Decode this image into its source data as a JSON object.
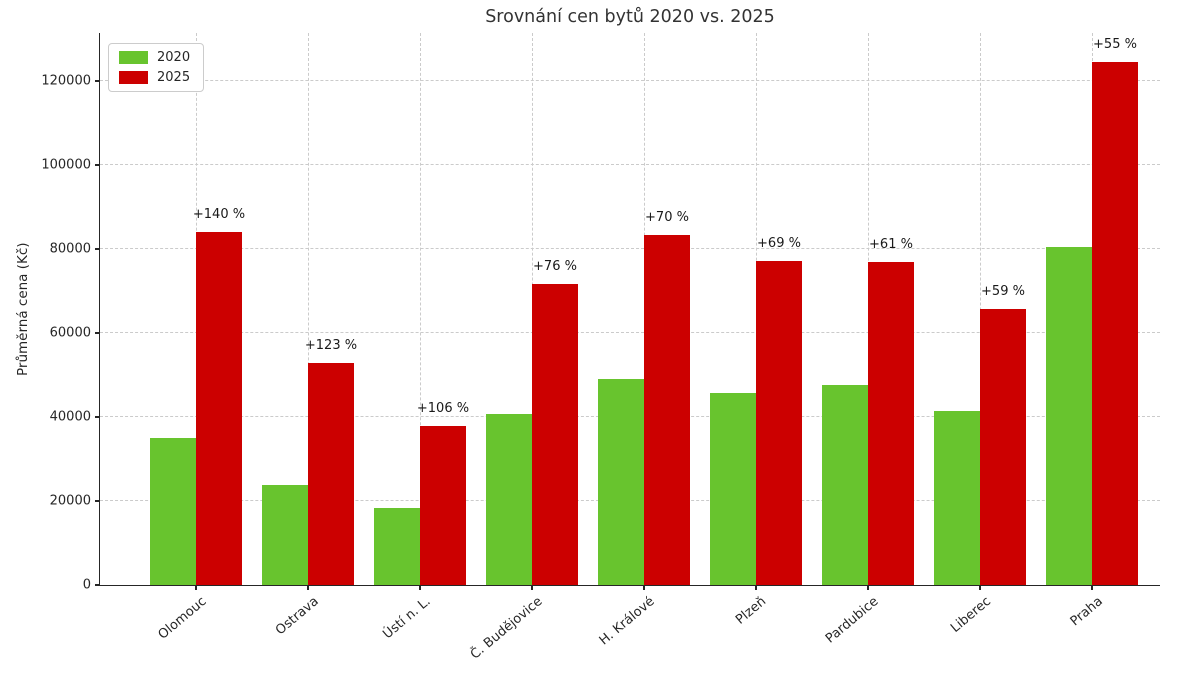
{
  "title": "Srovnání cen bytů 2020 vs. 2025",
  "chart_data": {
    "type": "bar",
    "title": "Srovnání cen bytů 2020 vs. 2025",
    "xlabel": "",
    "ylabel": "Průměrná cena (Kč)",
    "categories": [
      "Olomouc",
      "Ostrava",
      "Ústí n. L.",
      "Č. Budějovice",
      "H. Králové",
      "Plzeň",
      "Pardubice",
      "Liberec",
      "Praha"
    ],
    "series": [
      {
        "name": "2020",
        "color": "#68c42e",
        "values": [
          35000,
          23700,
          18400,
          40800,
          49000,
          45700,
          47700,
          41400,
          80400
        ]
      },
      {
        "name": "2025",
        "color": "#cc0000",
        "values": [
          84000,
          52900,
          37900,
          71700,
          83300,
          77200,
          76800,
          65800,
          124500
        ]
      }
    ],
    "annotations": [
      "+140 %",
      "+123 %",
      "+106 %",
      "+76 %",
      "+70 %",
      "+69 %",
      "+61 %",
      "+59 %",
      "+55 %"
    ],
    "annotation_series": "2025",
    "yticks": [
      0,
      20000,
      40000,
      60000,
      80000,
      100000,
      120000
    ],
    "ylim": [
      0,
      131400
    ],
    "grid": {
      "visible": true,
      "style": "dashed",
      "axes": "both",
      "color": "#cbcbcb",
      "axisbelow": true
    },
    "legend": {
      "position": "upper-left",
      "entries": [
        "2020",
        "2025"
      ]
    },
    "xtick_rotation_deg": 40
  },
  "colors": {
    "background": "#ffffff",
    "bar_2020": "#68c42e",
    "bar_2025": "#cc0000",
    "grid": "#cbcbcb",
    "axis": "#262626",
    "title_text": "#333333",
    "tick_text": "#262626"
  }
}
